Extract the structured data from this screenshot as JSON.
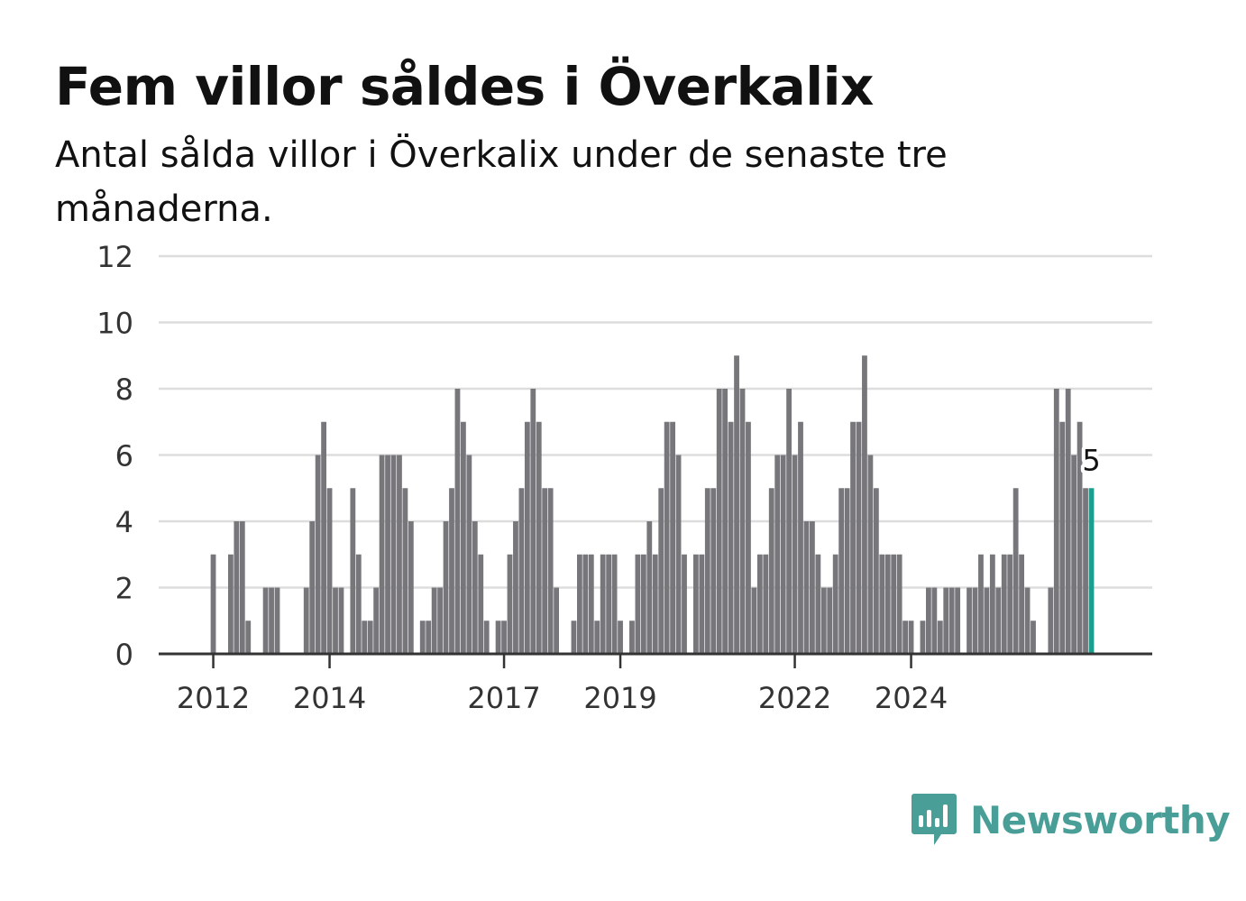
{
  "title": "Fem villor såldes i Överkalix",
  "subtitle": "Antal sålda villor i Överkalix under de senaste tre månaderna.",
  "brand": {
    "name": "Newsworthy",
    "icon": "newsworthy-logo-icon",
    "color": "#4a9e98"
  },
  "chart_data": {
    "type": "bar",
    "title": "Fem villor såldes i Överkalix",
    "subtitle": "Antal sålda villor i Överkalix under de senaste tre månaderna.",
    "xlabel": "",
    "ylabel": "",
    "ylim": [
      0,
      12
    ],
    "yticks": [
      0,
      2,
      4,
      6,
      8,
      10,
      12
    ],
    "xticks": [
      "2012",
      "2014",
      "2017",
      "2019",
      "2022",
      "2024"
    ],
    "xtick_index": [
      7,
      27,
      57,
      77,
      107,
      127
    ],
    "grid": true,
    "bar_color": "#77767b",
    "highlight_color": "#1b9e8d",
    "last_value_label": "5",
    "values": [
      0,
      0,
      0,
      0,
      0,
      0,
      0,
      3,
      0,
      0,
      3,
      4,
      4,
      1,
      0,
      0,
      2,
      2,
      2,
      0,
      0,
      0,
      0,
      2,
      4,
      6,
      7,
      5,
      2,
      2,
      0,
      5,
      3,
      1,
      1,
      2,
      6,
      6,
      6,
      6,
      5,
      4,
      0,
      1,
      1,
      2,
      2,
      4,
      5,
      8,
      7,
      6,
      4,
      3,
      1,
      0,
      1,
      1,
      3,
      4,
      5,
      7,
      8,
      7,
      5,
      5,
      2,
      0,
      0,
      1,
      3,
      3,
      3,
      1,
      3,
      3,
      3,
      1,
      0,
      1,
      3,
      3,
      4,
      3,
      5,
      7,
      7,
      6,
      3,
      0,
      3,
      3,
      5,
      5,
      8,
      8,
      7,
      9,
      8,
      7,
      2,
      3,
      3,
      5,
      6,
      6,
      8,
      6,
      7,
      4,
      4,
      3,
      2,
      2,
      3,
      5,
      5,
      7,
      7,
      9,
      6,
      5,
      3,
      3,
      3,
      3,
      1,
      1,
      0,
      1,
      2,
      2,
      1,
      2,
      2,
      2,
      0,
      2,
      2,
      3,
      2,
      3,
      2,
      3,
      3,
      5,
      3,
      2,
      1,
      0,
      0,
      2,
      8,
      7,
      8,
      6,
      7,
      5,
      5
    ]
  }
}
